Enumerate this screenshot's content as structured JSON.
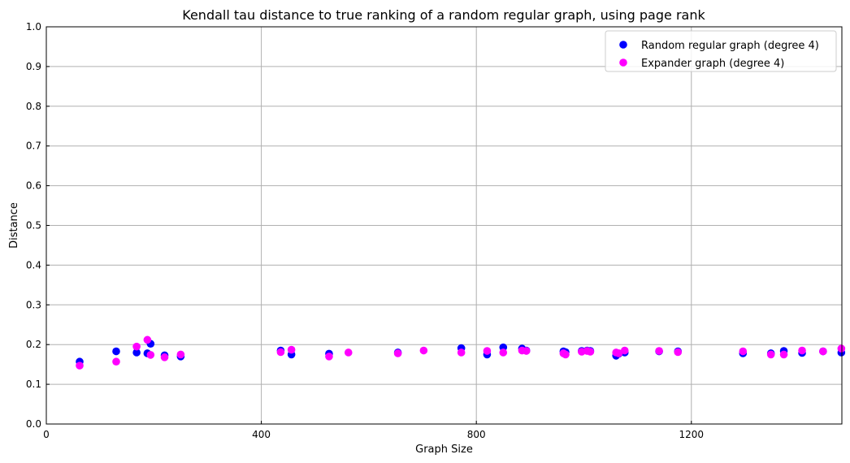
{
  "chart_data": {
    "type": "scatter",
    "title": "Kendall tau distance to true ranking of a random regular graph, using page rank",
    "xlabel": "Graph Size",
    "ylabel": "Distance",
    "xlim": [
      0,
      1480
    ],
    "ylim": [
      0,
      1.0
    ],
    "xticks": [
      0,
      400,
      800,
      1200
    ],
    "yticks": [
      0.0,
      0.1,
      0.2,
      0.3,
      0.4,
      0.5,
      0.6,
      0.7,
      0.8,
      0.9,
      1.0
    ],
    "xtick_labels": [
      "0",
      "400",
      "800",
      "1200"
    ],
    "ytick_labels": [
      "0.0",
      "0.1",
      "0.2",
      "0.3",
      "0.4",
      "0.5",
      "0.6",
      "0.7",
      "0.8",
      "0.9",
      "1.0"
    ],
    "grid": true,
    "legend_position": "top-right",
    "series": [
      {
        "name": "Random regular graph (degree 4)",
        "color": "#0000ff",
        "x": [
          62,
          130,
          168,
          188,
          194,
          220,
          250,
          436,
          456,
          526,
          654,
          772,
          820,
          850,
          885,
          893,
          962,
          966,
          996,
          1006,
          1012,
          1060,
          1065,
          1076,
          1140,
          1175,
          1296,
          1348,
          1372,
          1406,
          1445,
          1479
        ],
        "y": [
          0.157,
          0.183,
          0.18,
          0.178,
          0.202,
          0.173,
          0.17,
          0.185,
          0.175,
          0.177,
          0.18,
          0.191,
          0.175,
          0.193,
          0.19,
          0.185,
          0.183,
          0.181,
          0.184,
          0.185,
          0.184,
          0.172,
          0.177,
          0.18,
          0.183,
          0.183,
          0.178,
          0.178,
          0.184,
          0.179,
          0.183,
          0.18
        ]
      },
      {
        "name": "Expander graph (degree 4)",
        "color": "#ff00ff",
        "x": [
          62,
          130,
          168,
          188,
          194,
          220,
          250,
          436,
          456,
          526,
          562,
          654,
          702,
          772,
          820,
          850,
          885,
          893,
          962,
          966,
          996,
          1006,
          1012,
          1060,
          1065,
          1076,
          1140,
          1175,
          1296,
          1348,
          1372,
          1406,
          1445,
          1479
        ],
        "y": [
          0.147,
          0.157,
          0.195,
          0.212,
          0.174,
          0.168,
          0.175,
          0.181,
          0.187,
          0.17,
          0.18,
          0.178,
          0.185,
          0.18,
          0.184,
          0.18,
          0.185,
          0.184,
          0.178,
          0.175,
          0.182,
          0.184,
          0.182,
          0.18,
          0.178,
          0.185,
          0.184,
          0.181,
          0.183,
          0.175,
          0.175,
          0.185,
          0.183,
          0.19
        ]
      }
    ]
  }
}
